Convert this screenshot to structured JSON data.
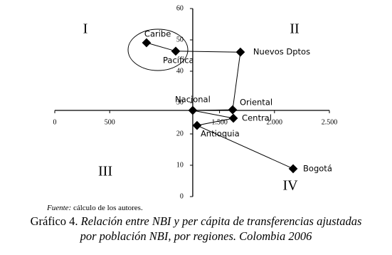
{
  "chart_data": {
    "type": "scatter",
    "x": [
      835,
      1101,
      1690,
      1619,
      1256,
      1626,
      1295,
      2170
    ],
    "values": [
      49.1,
      46.4,
      46.1,
      27.7,
      27.5,
      25.0,
      22.7,
      8.9
    ],
    "point_labels": [
      "Caribe",
      "Pacífica",
      "Nuevos Dptos",
      "Oriental",
      "Nacional",
      "Central",
      "Antioquia",
      "Bogotá"
    ],
    "color": "#000000",
    "xlim": [
      0,
      2500
    ],
    "xticks": [
      0,
      500,
      {
        "value": 1500,
        "label": "1.500"
      },
      {
        "value": 2000,
        "label": "2.000"
      },
      {
        "value": 2500,
        "label": "2.500"
      }
    ],
    "ylim": [
      0,
      60
    ],
    "yticks": [
      0,
      10,
      20,
      30,
      40,
      50,
      60
    ],
    "x_axis_at": 27.5,
    "y_axis_at": 1256,
    "quadrants": [
      "I",
      "II",
      "III",
      "IV"
    ],
    "source_label": "Fuente:",
    "source_text": "cálculo de los autores.",
    "caption_label": "Gráfico 4.",
    "caption_lines": [
      "Relación entre NBI y per cápita de transferencias ajustadas",
      "por población NBI, por regiones. Colombia 2006"
    ]
  }
}
